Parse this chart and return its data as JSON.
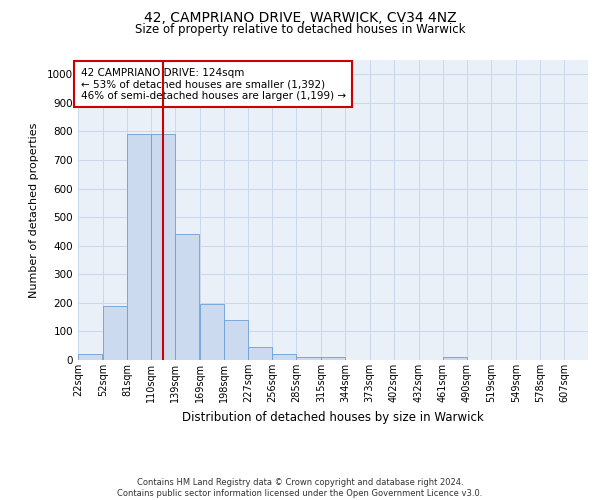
{
  "title1": "42, CAMPRIANO DRIVE, WARWICK, CV34 4NZ",
  "title2": "Size of property relative to detached houses in Warwick",
  "xlabel": "Distribution of detached houses by size in Warwick",
  "ylabel": "Number of detached properties",
  "bin_labels": [
    "22sqm",
    "52sqm",
    "81sqm",
    "110sqm",
    "139sqm",
    "169sqm",
    "198sqm",
    "227sqm",
    "256sqm",
    "285sqm",
    "315sqm",
    "344sqm",
    "373sqm",
    "402sqm",
    "432sqm",
    "461sqm",
    "490sqm",
    "519sqm",
    "549sqm",
    "578sqm",
    "607sqm"
  ],
  "bar_heights": [
    20,
    190,
    790,
    790,
    440,
    195,
    140,
    47,
    20,
    12,
    10,
    0,
    0,
    0,
    0,
    10,
    0,
    0,
    0,
    0,
    0
  ],
  "bar_color": "#ccdaf0",
  "bar_edge_color": "#6a9fd8",
  "red_line_x": 124,
  "ylim": [
    0,
    1050
  ],
  "yticks": [
    0,
    100,
    200,
    300,
    400,
    500,
    600,
    700,
    800,
    900,
    1000
  ],
  "annotation_line1": "42 CAMPRIANO DRIVE: 124sqm",
  "annotation_line2": "← 53% of detached houses are smaller (1,392)",
  "annotation_line3": "46% of semi-detached houses are larger (1,199) →",
  "annotation_box_color": "#ffffff",
  "annotation_box_edge_color": "#cc0000",
  "footer_text": "Contains HM Land Registry data © Crown copyright and database right 2024.\nContains public sector information licensed under the Open Government Licence v3.0.",
  "grid_color": "#c8d8ec",
  "background_color": "#eaf0f8"
}
